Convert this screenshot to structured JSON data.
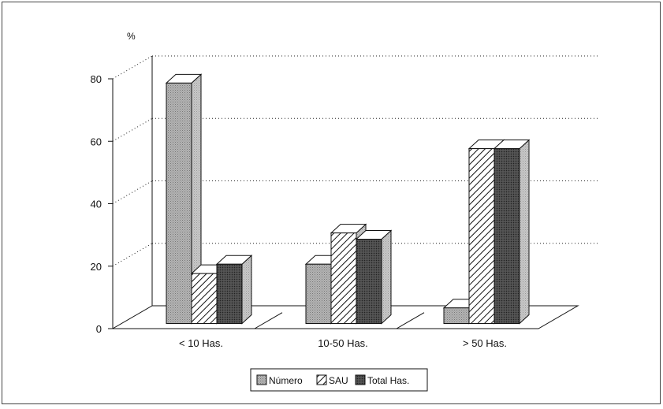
{
  "chart_data": {
    "type": "bar",
    "ylabel": "%",
    "ylim": [
      0,
      80
    ],
    "yticks": [
      0,
      20,
      40,
      60,
      80
    ],
    "categories": [
      "< 10  Has.",
      "10-50 Has.",
      "> 50  Has."
    ],
    "series": [
      {
        "name": "Número",
        "values": [
          77,
          19,
          5
        ],
        "pattern": "dotted-gray",
        "color": "#a6a6a6"
      },
      {
        "name": "SAU",
        "values": [
          16,
          29,
          56
        ],
        "pattern": "diagonal-hatch",
        "color": "#ffffff"
      },
      {
        "name": "Total Has.",
        "values": [
          19,
          27,
          56
        ],
        "pattern": "dark-gray",
        "color": "#4a4a4a"
      }
    ],
    "grid": true,
    "legend_position": "bottom-center"
  }
}
